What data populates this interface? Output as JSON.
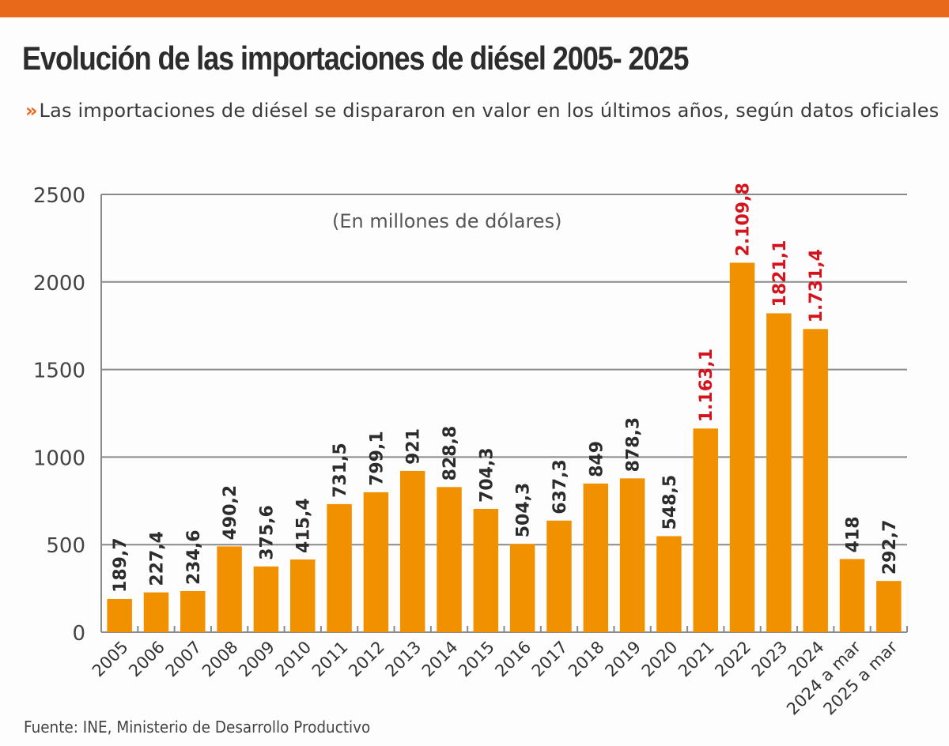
{
  "header": {
    "title": "Evolución de las importaciones de diésel 2005- 2025",
    "subtitle_marker": "»",
    "subtitle": "Las importaciones de diésel se dispararon en valor en los últimos años, según datos oficiales"
  },
  "footer": {
    "source": "Fuente: INE, Ministerio de Desarrollo Productivo"
  },
  "colors": {
    "accent": "#e8691a",
    "bar": "#f29100",
    "label_default": "#2c2c2c",
    "label_highlight": "#d4141c",
    "grid": "#8a8a8a"
  },
  "chart_data": {
    "type": "bar",
    "title": "Evolución de las importaciones de diésel 2005- 2025",
    "unit_note": "(En millones de dólares)",
    "xlabel": "",
    "ylabel": "",
    "ylim": [
      0,
      2500
    ],
    "yticks": [
      0,
      500,
      1000,
      1500,
      2000,
      2500
    ],
    "grid": true,
    "categories": [
      "2005",
      "2006",
      "2007",
      "2008",
      "2009",
      "2010",
      "2011",
      "2012",
      "2013",
      "2014",
      "2015",
      "2016",
      "2017",
      "2018",
      "2019",
      "2020",
      "2021",
      "2022",
      "2023",
      "2024",
      "2024 a mar",
      "2025 a mar"
    ],
    "values": [
      189.7,
      227.4,
      234.6,
      490.2,
      375.6,
      415.4,
      731.5,
      799.1,
      921,
      828.8,
      704.3,
      504.3,
      637.3,
      849,
      878.3,
      548.5,
      1163.1,
      2109.8,
      1821.1,
      1731.4,
      418,
      292.7
    ],
    "value_labels": [
      "189,7",
      "227,4",
      "234,6",
      "490,2",
      "375,6",
      "415,4",
      "731,5",
      "799,1",
      "921",
      "828,8",
      "704,3",
      "504,3",
      "637,3",
      "849",
      "878,3",
      "548,5",
      "1.163,1",
      "2.109,8",
      "1821,1",
      "1.731,4",
      "418",
      "292,7"
    ],
    "highlighted": [
      "2021",
      "2022",
      "2023",
      "2024"
    ]
  }
}
